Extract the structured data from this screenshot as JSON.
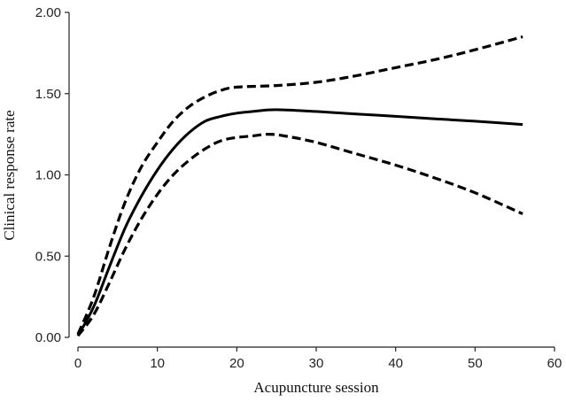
{
  "chart_data": {
    "type": "line",
    "title": "",
    "xlabel": "Acupuncture session",
    "ylabel": "Clinical response rate",
    "xlim": [
      0,
      60
    ],
    "ylim": [
      0,
      2
    ],
    "x_ticks": [
      0,
      10,
      20,
      30,
      40,
      50,
      60
    ],
    "x_tick_labels": [
      "0",
      "10",
      "20",
      "30",
      "40",
      "50",
      "60"
    ],
    "y_ticks": [
      0,
      0.5,
      1,
      1.5,
      2
    ],
    "y_tick_labels": [
      "0.00",
      "0.50",
      "1.00",
      "1.50",
      "2.00"
    ],
    "grid": false,
    "legend": "none",
    "series": [
      {
        "style": "solid",
        "color": "#000000",
        "points": [
          [
            0,
            0.01
          ],
          [
            2,
            0.19
          ],
          [
            4,
            0.44
          ],
          [
            6,
            0.68
          ],
          [
            8,
            0.87
          ],
          [
            10,
            1.03
          ],
          [
            12,
            1.16
          ],
          [
            14,
            1.26
          ],
          [
            16,
            1.33
          ],
          [
            18,
            1.36
          ],
          [
            20,
            1.38
          ],
          [
            22,
            1.39
          ],
          [
            24,
            1.4
          ],
          [
            26,
            1.4
          ],
          [
            30,
            1.39
          ],
          [
            35,
            1.375
          ],
          [
            40,
            1.36
          ],
          [
            45,
            1.345
          ],
          [
            50,
            1.33
          ],
          [
            56,
            1.31
          ]
        ]
      },
      {
        "style": "dashed",
        "color": "#000000",
        "points": [
          [
            0,
            0.02
          ],
          [
            2,
            0.25
          ],
          [
            4,
            0.56
          ],
          [
            6,
            0.84
          ],
          [
            8,
            1.05
          ],
          [
            10,
            1.2
          ],
          [
            12,
            1.33
          ],
          [
            14,
            1.42
          ],
          [
            16,
            1.48
          ],
          [
            18,
            1.52
          ],
          [
            20,
            1.54
          ],
          [
            25,
            1.55
          ],
          [
            30,
            1.57
          ],
          [
            35,
            1.61
          ],
          [
            40,
            1.66
          ],
          [
            45,
            1.71
          ],
          [
            50,
            1.77
          ],
          [
            56,
            1.85
          ]
        ]
      },
      {
        "style": "dashed",
        "color": "#000000",
        "points": [
          [
            0,
            0.01
          ],
          [
            2,
            0.14
          ],
          [
            4,
            0.34
          ],
          [
            6,
            0.55
          ],
          [
            8,
            0.73
          ],
          [
            10,
            0.88
          ],
          [
            12,
            1.0
          ],
          [
            14,
            1.09
          ],
          [
            16,
            1.16
          ],
          [
            18,
            1.21
          ],
          [
            20,
            1.23
          ],
          [
            22,
            1.24
          ],
          [
            24,
            1.25
          ],
          [
            26,
            1.24
          ],
          [
            30,
            1.2
          ],
          [
            35,
            1.13
          ],
          [
            40,
            1.06
          ],
          [
            45,
            0.98
          ],
          [
            50,
            0.89
          ],
          [
            56,
            0.76
          ]
        ]
      }
    ]
  }
}
